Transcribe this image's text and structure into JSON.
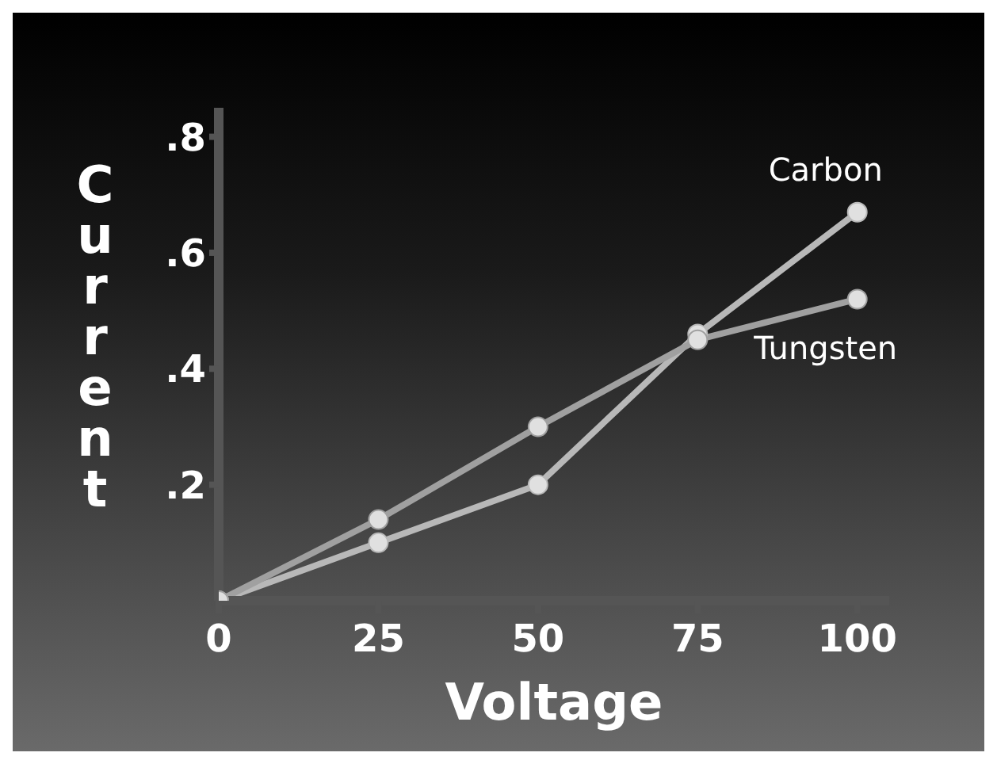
{
  "chart_data": {
    "type": "line",
    "xlabel": "Voltage",
    "ylabel": "Current",
    "x": [
      0,
      25,
      50,
      75,
      100
    ],
    "series": [
      {
        "name": "Carbon",
        "color": "#b8b8b8",
        "values": [
          0,
          0.1,
          0.2,
          0.46,
          0.67
        ]
      },
      {
        "name": "Tungsten",
        "color": "#a0a0a0",
        "values": [
          0,
          0.14,
          0.3,
          0.45,
          0.52
        ]
      }
    ],
    "xlim": [
      0,
      105
    ],
    "xticks": [
      0,
      25,
      50,
      75,
      100
    ],
    "ylim": [
      0,
      0.85
    ],
    "yticks": [
      {
        "value": 0.2,
        "label": ".2"
      },
      {
        "value": 0.4,
        "label": ".4"
      },
      {
        "value": 0.6,
        "label": ".6"
      },
      {
        "value": 0.8,
        "label": ".8"
      }
    ],
    "grid": false,
    "legend": false,
    "marker": "circle",
    "line_style": "solid"
  }
}
